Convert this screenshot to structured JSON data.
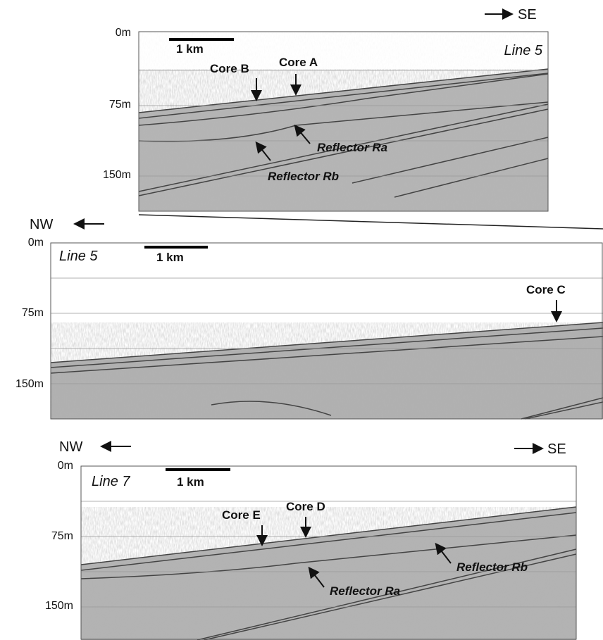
{
  "panels": [
    {
      "direction_right": "SE",
      "depth_labels": [
        "0m",
        "75m",
        "150m"
      ],
      "scale_label": "1 km",
      "line_label": "Line 5",
      "cores": [
        "Core B",
        "Core A"
      ],
      "reflectors": [
        "Reflector Ra",
        "Reflector Rb"
      ]
    },
    {
      "direction_left": "NW",
      "depth_labels": [
        "0m",
        "75m",
        "150m"
      ],
      "scale_label": "1 km",
      "line_label": "Line 5",
      "cores": [
        "Core C"
      ]
    },
    {
      "direction_left": "NW",
      "direction_right": "SE",
      "depth_labels": [
        "0m",
        "75m",
        "150m"
      ],
      "scale_label": "1 km",
      "line_label": "Line 7",
      "cores": [
        "Core E",
        "Core D"
      ],
      "reflectors": [
        "Reflector Ra",
        "Reflector Rb"
      ]
    }
  ]
}
